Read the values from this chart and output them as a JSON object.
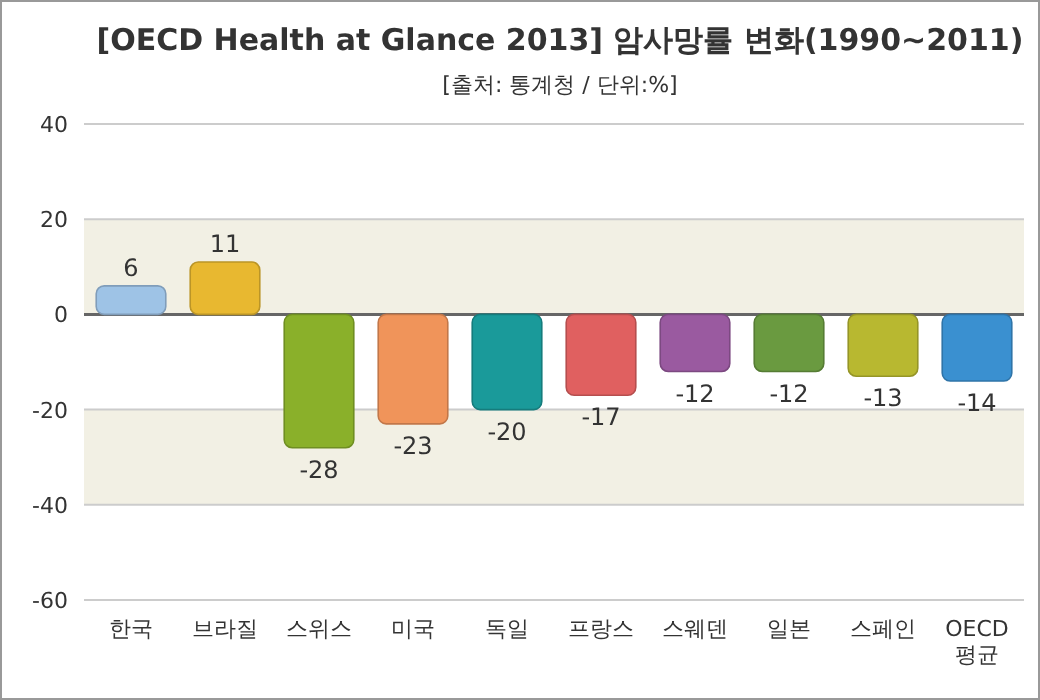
{
  "chart_data": {
    "type": "bar",
    "title": "[OECD Health at Glance 2013] 암사망률 변화(1990~2011)",
    "subtitle": "[출처: 통계청 / 단위:%]",
    "categories": [
      "한국",
      "브라질",
      "스위스",
      "미국",
      "독일",
      "프랑스",
      "스웨덴",
      "일본",
      "스페인",
      "OECD 평균"
    ],
    "values": [
      6,
      11,
      -28,
      -23,
      -20,
      -17,
      -12,
      -12,
      -13,
      -14
    ],
    "colors": [
      "#9ec3e6",
      "#e8b830",
      "#8ab02a",
      "#f0945a",
      "#1a9a9a",
      "#e06060",
      "#9a5aa0",
      "#6a9a40",
      "#b8b830",
      "#3a90d0"
    ],
    "ylim": [
      -60,
      40
    ],
    "yticks": [
      -60,
      -40,
      -20,
      0,
      20,
      40
    ],
    "grid": "y",
    "data_labels": true
  }
}
